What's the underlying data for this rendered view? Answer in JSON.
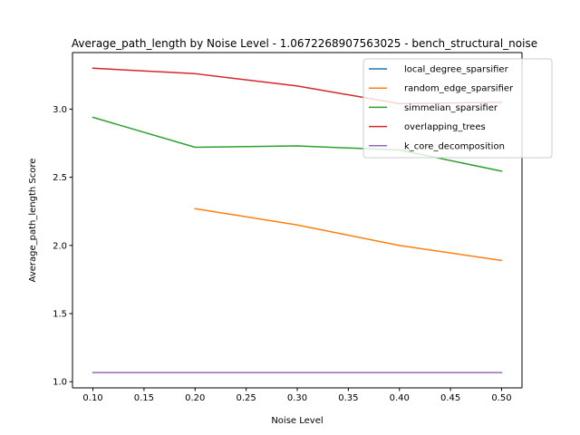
{
  "chart_data": {
    "type": "line",
    "title": "Average_path_length by Noise Level - 1.0672268907563025 - bench_structural_noise",
    "xlabel": "Noise Level",
    "ylabel": "Average_path_length Score",
    "xlim": [
      0.08,
      0.52
    ],
    "ylim": [
      0.955,
      3.415
    ],
    "xticks": [
      0.1,
      0.15,
      0.2,
      0.25,
      0.3,
      0.35,
      0.4,
      0.45,
      0.5
    ],
    "xtick_labels": [
      "0.10",
      "0.15",
      "0.20",
      "0.25",
      "0.30",
      "0.35",
      "0.40",
      "0.45",
      "0.50"
    ],
    "yticks": [
      1.0,
      1.5,
      2.0,
      2.5,
      3.0
    ],
    "ytick_labels": [
      "1.0",
      "1.5",
      "2.0",
      "2.5",
      "3.0"
    ],
    "grid": false,
    "legend_position": "top-right",
    "series": [
      {
        "name": "local_degree_sparsifier",
        "color": "#1f77b4",
        "x": [],
        "y": []
      },
      {
        "name": "random_edge_sparsifier",
        "color": "#ff7f0e",
        "x": [
          0.2,
          0.3,
          0.4,
          0.5
        ],
        "y": [
          2.27,
          2.15,
          2.0,
          1.89
        ]
      },
      {
        "name": "simmelian_sparsifier",
        "color": "#2ca02c",
        "x": [
          0.1,
          0.2,
          0.3,
          0.4,
          0.5
        ],
        "y": [
          2.94,
          2.72,
          2.73,
          2.7,
          2.545
        ]
      },
      {
        "name": "overlapping_trees",
        "color": "#d62728",
        "x": [
          0.1,
          0.2,
          0.3,
          0.4,
          0.5
        ],
        "y": [
          3.3,
          3.26,
          3.17,
          3.04,
          3.05
        ]
      },
      {
        "name": "k_core_decomposition",
        "color": "#9467bd",
        "x": [
          0.1,
          0.2,
          0.3,
          0.4,
          0.5
        ],
        "y": [
          1.0672268907563025,
          1.0672268907563025,
          1.0672268907563025,
          1.0672268907563025,
          1.0672268907563025
        ]
      }
    ]
  }
}
